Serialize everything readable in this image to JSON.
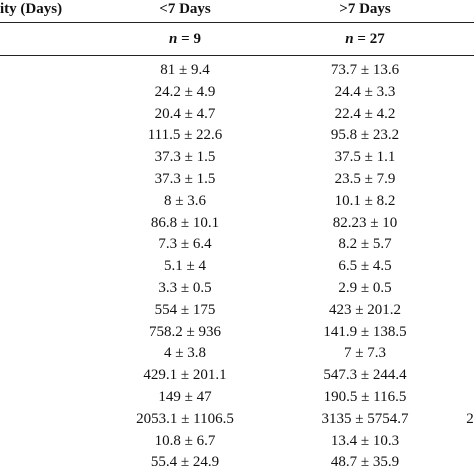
{
  "table": {
    "header": [
      "ity (Days)",
      "<7 Days",
      ">7 Days"
    ],
    "subheader": [
      "n = 9",
      "n = 27"
    ],
    "rows": [
      [
        "81 ± 9.4",
        "73.7 ± 13.6"
      ],
      [
        "24.2 ± 4.9",
        "24.4 ± 3.3"
      ],
      [
        "20.4 ± 4.7",
        "22.4 ± 4.2"
      ],
      [
        "111.5 ± 22.6",
        "95.8 ± 23.2"
      ],
      [
        "37.3 ± 1.5",
        "37.5 ± 1.1"
      ],
      [
        "37.3 ± 1.5",
        "23.5 ± 7.9"
      ],
      [
        "8 ± 3.6",
        "10.1 ± 8.2"
      ],
      [
        "86.8 ± 10.1",
        "82.23 ± 10"
      ],
      [
        "7.3 ± 6.4",
        "8.2 ± 5.7"
      ],
      [
        "5.1 ± 4",
        "6.5 ± 4.5"
      ],
      [
        "3.3 ± 0.5",
        "2.9 ± 0.5"
      ],
      [
        "554 ± 175",
        "423 ± 201.2"
      ],
      [
        "758.2 ± 936",
        "141.9 ± 138.5"
      ],
      [
        "4 ± 3.8",
        "7 ± 7.3"
      ],
      [
        "429.1 ± 201.1",
        "547.3 ± 244.4"
      ],
      [
        "149 ± 47",
        "190.5 ± 116.5"
      ],
      [
        "2053.1 ± 1106.5",
        "3135 ± 5754.7",
        "2"
      ],
      [
        "10.8 ± 6.7",
        "13.4 ± 10.3"
      ],
      [
        "55.4 ± 24.9",
        "48.7 ± 35.9"
      ]
    ]
  }
}
